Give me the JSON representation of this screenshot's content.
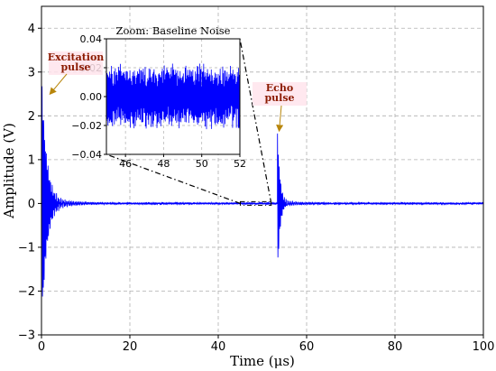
{
  "chart_data": {
    "type": "line",
    "title": "",
    "xlabel": "Time (μs)",
    "ylabel": "Amplitude (V)",
    "xlim": [
      0,
      100
    ],
    "ylim": [
      -3,
      4.5
    ],
    "xticks": [
      0,
      20,
      40,
      60,
      80,
      100
    ],
    "xtick_labels": [
      "0",
      "20",
      "40",
      "60",
      "80",
      "100"
    ],
    "yticks": [
      -3,
      -2,
      -1,
      0,
      1,
      2,
      3,
      4
    ],
    "ytick_labels": [
      "−3",
      "−2",
      "−1",
      "0",
      "1",
      "2",
      "3",
      "4"
    ],
    "grid": true,
    "line_color": "#0000ff",
    "features": {
      "excitation_pulse": {
        "t": 1.0,
        "amplitude_max": 2.6,
        "amplitude_min": -2.5
      },
      "echo_pulse": {
        "t": 54.0,
        "amplitude_max": 1.65,
        "amplitude_min": -1.45
      },
      "baseline_noise_amplitude": 0.02
    },
    "annotations": [
      {
        "text_lines": [
          "Excitation",
          "pulse"
        ],
        "x": 1.2,
        "y": 2.55
      },
      {
        "text_lines": [
          "Echo",
          "pulse"
        ],
        "x": 54.0,
        "y": 1.65
      }
    ],
    "inset": {
      "title": "Zoom: Baseline Noise",
      "xlim": [
        45,
        52
      ],
      "ylim": [
        -0.04,
        0.04
      ],
      "xticks": [
        46,
        48,
        50,
        52
      ],
      "xtick_labels": [
        "46",
        "48",
        "50",
        "52"
      ],
      "yticks": [
        -0.04,
        -0.02,
        0.0,
        0.02,
        0.04
      ],
      "ytick_labels": [
        "−0.04",
        "−0.02",
        "0.00",
        "0.02",
        "0.04"
      ],
      "zoom_region": {
        "x": [
          45,
          52
        ],
        "y": [
          -0.04,
          0.04
        ]
      }
    }
  }
}
